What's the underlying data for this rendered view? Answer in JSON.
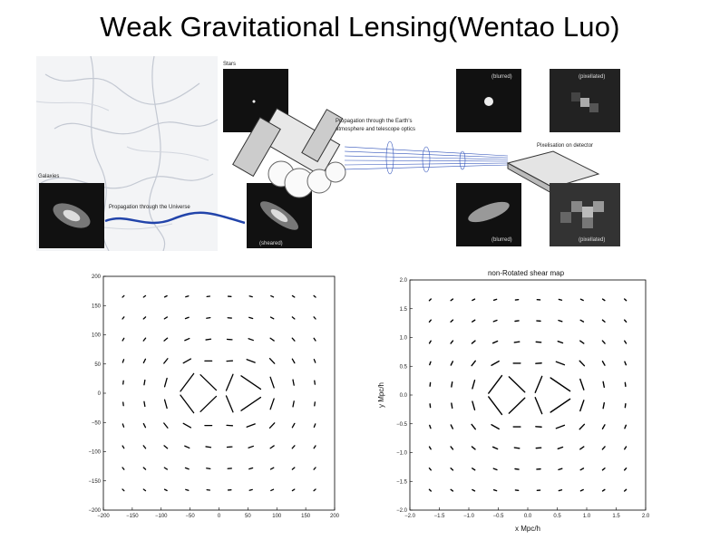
{
  "slide": {
    "title": "Weak Gravitational Lensing(Wentao Luo)"
  },
  "figure": {
    "labels": {
      "stars": "Stars",
      "galaxies": "Galaxies",
      "propagation_universe": "Propagation through the Universe",
      "propagation_atmosphere_line1": "Propagation through the Earth's",
      "propagation_atmosphere_line2": "atmosphere and telescope optics",
      "pixelisation": "Pixelisation on detector",
      "blurred_top": "(blurred)",
      "pixellated_top": "(pixellated)",
      "blurred_bottom": "(blurred)",
      "pixellated_bottom": "(pixellated)",
      "sheared": "(sheared)"
    }
  },
  "left_plot": {
    "x_ticks": [
      "−200",
      "−150",
      "−100",
      "−50",
      "0",
      "50",
      "100",
      "150",
      "200"
    ],
    "y_ticks": [
      "200",
      "150",
      "100",
      "50",
      "0",
      "−50",
      "−100",
      "−150",
      "−200"
    ]
  },
  "right_plot": {
    "title": "non-Rotated shear map",
    "xlabel": "x Mpc/h",
    "ylabel": "y Mpc/h",
    "x_ticks": [
      "−2.0",
      "−1.5",
      "−1.0",
      "−0.5",
      "0.0",
      "0.5",
      "1.0",
      "1.5",
      "2.0"
    ],
    "y_ticks": [
      "2.0",
      "1.5",
      "1.0",
      "0.5",
      "0.0",
      "−0.5",
      "−1.0",
      "−1.5",
      "−2.0"
    ]
  }
}
